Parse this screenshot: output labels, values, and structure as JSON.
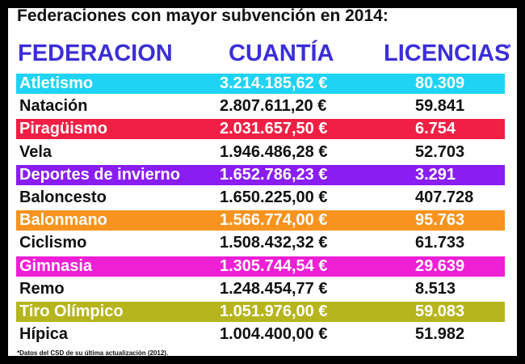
{
  "title": "Federaciones con mayor subvención en 2014:",
  "footnote": "*Datos del CSD de su última actualización (2012).",
  "chart_data": {
    "type": "table",
    "columns": [
      "FEDERACION",
      "CUANTÍA",
      "LICENCIAS"
    ],
    "licencias_marker": "*",
    "currency_symbol": "€",
    "highlight_text_color": "#ffffff",
    "plain_text_color": "#111111",
    "rows": [
      {
        "federacion": "Atletismo",
        "cuantia": "3.214.185,62",
        "licencias": "80.309",
        "color": "#1fd3f4"
      },
      {
        "federacion": "Natación",
        "cuantia": "2.807.611,20",
        "licencias": "59.841",
        "color": ""
      },
      {
        "federacion": "Piragüismo",
        "cuantia": "2.031.657,50",
        "licencias": "6.754",
        "color": "#f01f43"
      },
      {
        "federacion": "Vela",
        "cuantia": "1.946.486,28",
        "licencias": "52.703",
        "color": ""
      },
      {
        "federacion": "Deportes de invierno",
        "cuantia": "1.652.786,23",
        "licencias": "3.291",
        "color": "#8a1df2"
      },
      {
        "federacion": "Baloncesto",
        "cuantia": "1.650.225,00",
        "licencias": "407.728",
        "color": ""
      },
      {
        "federacion": "Balonmano",
        "cuantia": "1.566.774,00",
        "licencias": "95.763",
        "color": "#f7931e"
      },
      {
        "federacion": "Ciclismo",
        "cuantia": "1.508.432,32",
        "licencias": "61.733",
        "color": ""
      },
      {
        "federacion": "Gimnasia",
        "cuantia": "1.305.744,54",
        "licencias": "29.639",
        "color": "#ef1fd6"
      },
      {
        "federacion": "Remo",
        "cuantia": "1.248.454,77",
        "licencias": "8.513",
        "color": ""
      },
      {
        "federacion": "Tiro Olímpico",
        "cuantia": "1.051.976,00",
        "licencias": "59.083",
        "color": "#b6b51d"
      },
      {
        "federacion": "Hípica",
        "cuantia": "1.004.400,00",
        "licencias": "51.982",
        "color": ""
      }
    ]
  }
}
